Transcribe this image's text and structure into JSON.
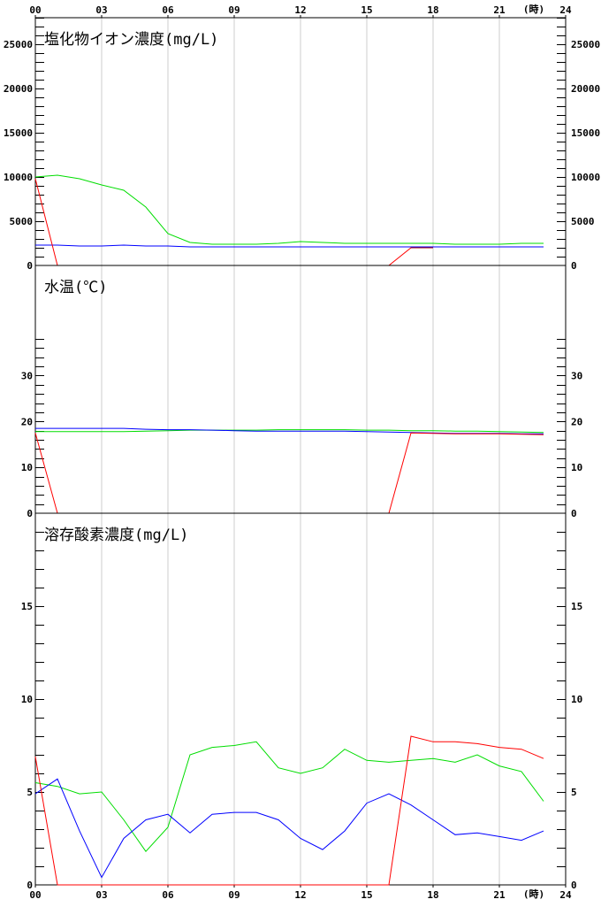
{
  "chart_data": {
    "type": "line",
    "x_axis": {
      "tick_labels": [
        "00",
        "03",
        "06",
        "09",
        "12",
        "15",
        "18",
        "21",
        "24"
      ],
      "unit_label": "(時)",
      "range": [
        0,
        24
      ]
    },
    "colors": {
      "red": "#ff0000",
      "green": "#00dd00",
      "blue": "#0000ff",
      "grid": "#cccccc",
      "axis": "#000000"
    },
    "panels": [
      {
        "id": "chloride",
        "title": "塩化物イオン濃度(mg/L)",
        "ylim": [
          0,
          28000
        ],
        "ytick_labels": [
          "0",
          "5000",
          "10000",
          "15000",
          "20000",
          "25000"
        ],
        "ytick_values": [
          0,
          5000,
          10000,
          15000,
          20000,
          25000
        ],
        "minor_step": 1000,
        "minor_max": 28000,
        "series": [
          {
            "color": "green",
            "values": [
              10000,
              10200,
              9800,
              9100,
              8500,
              6600,
              3600,
              2600,
              2400,
              2400,
              2400,
              2500,
              2700,
              2600,
              2500,
              2500,
              2500,
              2500,
              2500,
              2400,
              2400,
              2400,
              2500,
              2500
            ]
          },
          {
            "color": "blue",
            "values": [
              2300,
              2300,
              2200,
              2200,
              2300,
              2200,
              2200,
              2100,
              2100,
              2100,
              2100,
              2100,
              2100,
              2100,
              2100,
              2100,
              2100,
              2100,
              2100,
              2100,
              2100,
              2100,
              2100,
              2100
            ]
          },
          {
            "color": "red",
            "values": [
              9800,
              0,
              0,
              0,
              0,
              0,
              0,
              0,
              0,
              0,
              0,
              0,
              0,
              0,
              0,
              0,
              0,
              2000,
              2000,
              null,
              null,
              null,
              null,
              null
            ]
          },
          {
            "color": "darkred",
            "values": [
              null,
              null,
              null,
              null,
              null,
              null,
              null,
              null,
              null,
              null,
              null,
              null,
              null,
              null,
              null,
              null,
              null,
              2000,
              2000,
              null,
              null,
              null,
              null,
              null
            ]
          }
        ]
      },
      {
        "id": "temperature",
        "title": "水温(℃)",
        "ylim": [
          0,
          54
        ],
        "ytick_labels": [
          "0",
          "10",
          "20",
          "30"
        ],
        "ytick_values": [
          0,
          10,
          20,
          30
        ],
        "minor_step": 2,
        "minor_max": 38,
        "series": [
          {
            "color": "green",
            "values": [
              17.8,
              17.8,
              17.8,
              17.8,
              17.8,
              17.9,
              18.0,
              18.1,
              18.1,
              18.1,
              18.1,
              18.2,
              18.2,
              18.2,
              18.2,
              18.1,
              18.1,
              18.0,
              18.0,
              17.9,
              17.9,
              17.8,
              17.7,
              17.6
            ]
          },
          {
            "color": "blue",
            "values": [
              18.5,
              18.5,
              18.5,
              18.5,
              18.5,
              18.3,
              18.2,
              18.2,
              18.1,
              18.0,
              17.9,
              17.9,
              17.9,
              17.9,
              17.9,
              17.8,
              17.7,
              17.6,
              17.5,
              17.4,
              17.4,
              17.4,
              17.3,
              17.3
            ]
          },
          {
            "color": "red",
            "values": [
              17.5,
              0,
              0,
              0,
              0,
              0,
              0,
              0,
              0,
              0,
              0,
              0,
              0,
              0,
              0,
              0,
              0,
              17.5,
              17.4,
              17.3,
              17.3,
              17.3,
              17.2,
              17.1
            ]
          }
        ]
      },
      {
        "id": "dissolved-oxygen",
        "title": "溶存酸素濃度(mg/L)",
        "ylim": [
          0,
          20
        ],
        "ytick_labels": [
          "0",
          "5",
          "10",
          "15"
        ],
        "ytick_values": [
          0,
          5,
          10,
          15
        ],
        "minor_step": 1,
        "minor_max": 19,
        "series": [
          {
            "color": "green",
            "values": [
              5.5,
              5.3,
              4.9,
              5.0,
              3.5,
              1.8,
              3.1,
              7.0,
              7.4,
              7.5,
              7.7,
              6.3,
              6.0,
              6.3,
              7.3,
              6.7,
              6.6,
              6.7,
              6.8,
              6.6,
              7.0,
              6.4,
              6.1,
              4.5
            ]
          },
          {
            "color": "blue",
            "values": [
              4.9,
              5.7,
              2.9,
              0.4,
              2.5,
              3.5,
              3.8,
              2.8,
              3.8,
              3.9,
              3.9,
              3.5,
              2.5,
              1.9,
              2.9,
              4.4,
              4.9,
              4.3,
              3.5,
              2.7,
              2.8,
              2.6,
              2.4,
              2.9
            ]
          },
          {
            "color": "red",
            "values": [
              6.9,
              0,
              0,
              0,
              0,
              0,
              0,
              0,
              0,
              0,
              0,
              0,
              0,
              0,
              0,
              0,
              0,
              8.0,
              7.7,
              7.7,
              7.6,
              7.4,
              7.3,
              6.8
            ]
          }
        ]
      }
    ]
  }
}
